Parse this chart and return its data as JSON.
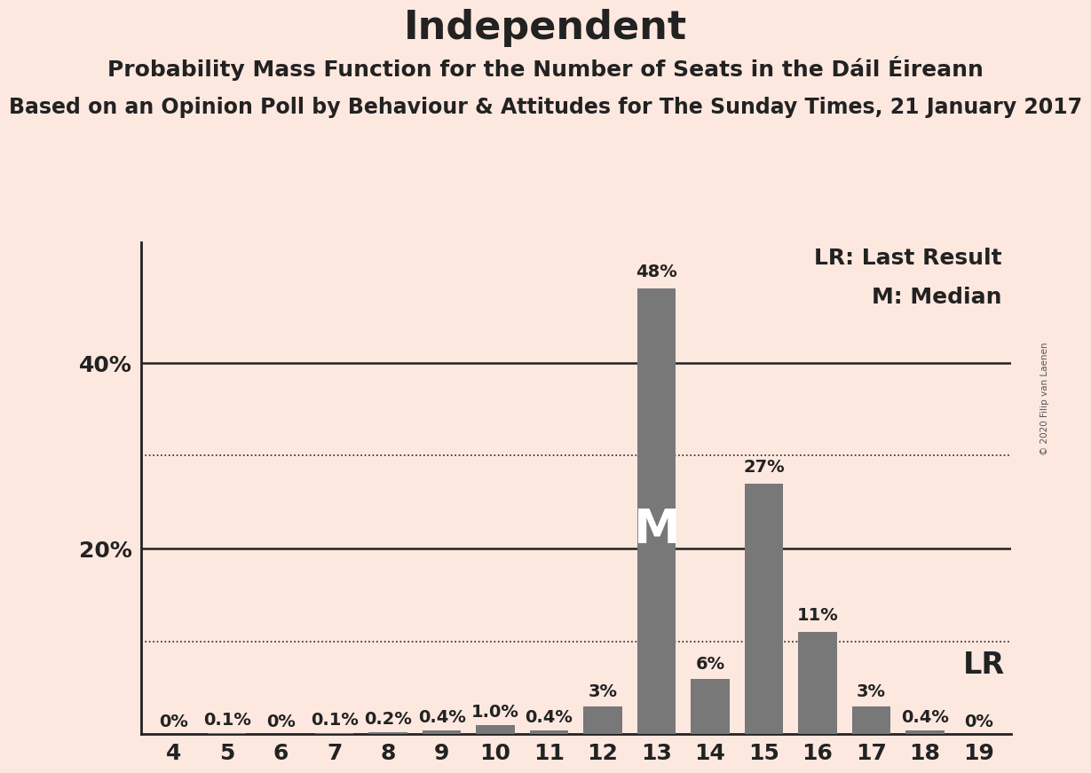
{
  "title": "Independent",
  "subtitle1": "Probability Mass Function for the Number of Seats in the Dáil Éireann",
  "subtitle2": "Based on an Opinion Poll by Behaviour & Attitudes for The Sunday Times, 21 January 2017",
  "copyright_text": "© 2020 Filip van Laenen",
  "categories": [
    4,
    5,
    6,
    7,
    8,
    9,
    10,
    11,
    12,
    13,
    14,
    15,
    16,
    17,
    18,
    19
  ],
  "values": [
    0.0,
    0.1,
    0.0,
    0.1,
    0.2,
    0.4,
    1.0,
    0.4,
    3.0,
    48.0,
    6.0,
    27.0,
    11.0,
    3.0,
    0.4,
    0.0
  ],
  "bar_color": "#787878",
  "background_color": "#fde8e0",
  "label_values": [
    "0%",
    "0.1%",
    "0%",
    "0.1%",
    "0.2%",
    "0.4%",
    "1.0%",
    "0.4%",
    "3%",
    "48%",
    "6%",
    "27%",
    "11%",
    "3%",
    "0.4%",
    "0%"
  ],
  "median_bar": 13,
  "median_label": "M",
  "lr_bar": 19,
  "lr_label": "LR",
  "lr_legend": "LR: Last Result",
  "m_legend": "M: Median",
  "ylim": [
    0,
    53
  ],
  "ytick_positions": [
    20,
    40
  ],
  "ytick_labels": [
    "20%",
    "40%"
  ],
  "solid_yticks": [
    20,
    40
  ],
  "dotted_yticks": [
    10,
    30
  ],
  "title_fontsize": 32,
  "subtitle1_fontsize": 18,
  "subtitle2_fontsize": 17,
  "axis_label_fontsize": 18,
  "bar_label_fontsize": 14,
  "annotation_fontsize": 24,
  "legend_fontsize": 18
}
